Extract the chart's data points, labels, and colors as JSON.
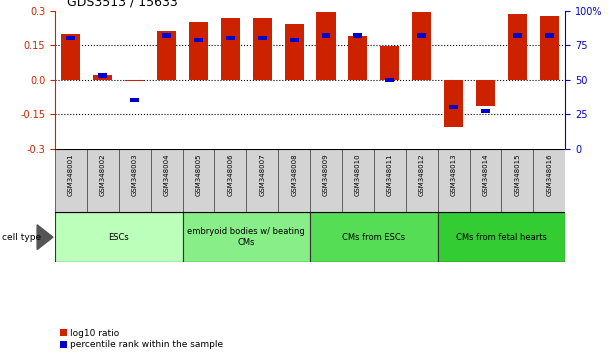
{
  "title": "GDS3513 / 15633",
  "samples": [
    "GSM348001",
    "GSM348002",
    "GSM348003",
    "GSM348004",
    "GSM348005",
    "GSM348006",
    "GSM348007",
    "GSM348008",
    "GSM348009",
    "GSM348010",
    "GSM348011",
    "GSM348012",
    "GSM348013",
    "GSM348014",
    "GSM348015",
    "GSM348016"
  ],
  "log10_ratio": [
    0.2,
    0.02,
    -0.005,
    0.21,
    0.25,
    0.27,
    0.27,
    0.24,
    0.295,
    0.19,
    0.145,
    0.295,
    -0.205,
    -0.115,
    0.285,
    0.275
  ],
  "percentile_rank_pct": [
    80,
    53,
    35,
    82,
    79,
    80,
    80,
    79,
    82,
    82,
    50,
    82,
    30,
    27,
    82,
    82
  ],
  "bar_color": "#cc2200",
  "dot_color": "#0000cc",
  "cell_type_groups": [
    {
      "label": "ESCs",
      "start": 0,
      "end": 3,
      "color": "#bbffbb"
    },
    {
      "label": "embryoid bodies w/ beating\nCMs",
      "start": 4,
      "end": 7,
      "color": "#88ee88"
    },
    {
      "label": "CMs from ESCs",
      "start": 8,
      "end": 11,
      "color": "#55dd55"
    },
    {
      "label": "CMs from fetal hearts",
      "start": 12,
      "end": 15,
      "color": "#33cc33"
    }
  ],
  "left_yticks": [
    -0.3,
    -0.15,
    0.0,
    0.15,
    0.3
  ],
  "right_yticks": [
    0,
    25,
    50,
    75,
    100
  ],
  "right_ytick_labels": [
    "0",
    "25",
    "50",
    "75",
    "100%"
  ],
  "ylim": [
    -0.3,
    0.3
  ],
  "right_ylim": [
    0,
    100
  ],
  "legend_red_label": "log10 ratio",
  "legend_blue_label": "percentile rank within the sample",
  "cell_type_label": "cell type"
}
